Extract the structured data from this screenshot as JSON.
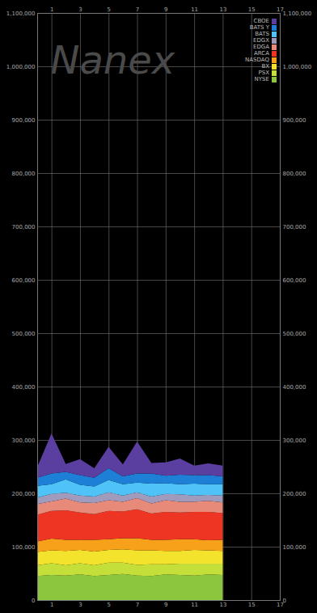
{
  "chart_data": {
    "type": "area",
    "stacked": true,
    "annotations": [
      "Nanex"
    ],
    "legend": "top-right",
    "grid": true,
    "x": [
      0,
      1,
      2,
      3,
      4,
      5,
      6,
      7,
      8,
      9,
      10,
      11,
      12,
      13
    ],
    "xlim": [
      0,
      17
    ],
    "xticks": [
      1,
      3,
      5,
      7,
      9,
      11,
      13,
      15,
      17
    ],
    "ylim": [
      0,
      1100000
    ],
    "yticks": [
      0,
      {
        "value": 100000,
        "label": "100,000"
      },
      {
        "value": 200000,
        "label": "200,000"
      },
      {
        "value": 300000,
        "label": "300,000"
      },
      {
        "value": 400000,
        "label": "400,000"
      },
      {
        "value": 500000,
        "label": "500,000"
      },
      {
        "value": 600000,
        "label": "600,000"
      },
      {
        "value": 700000,
        "label": "700,000"
      },
      {
        "value": 800000,
        "label": "800,000"
      },
      {
        "value": 900000,
        "label": "900,000"
      },
      {
        "value": 1000000,
        "label": "1,000,000"
      },
      {
        "value": 1100000,
        "label": "1,100,000"
      }
    ],
    "series": [
      {
        "name": "NYSE",
        "color": "#8cc63e",
        "values": [
          45000,
          47000,
          46000,
          48000,
          45000,
          47000,
          49000,
          46000,
          45000,
          48000,
          47000,
          46000,
          48000,
          47000
        ]
      },
      {
        "name": "PSX",
        "color": "#c5df3a",
        "values": [
          20000,
          22000,
          19000,
          21000,
          20000,
          23000,
          21000,
          20000,
          22000,
          19000,
          21000,
          22000,
          20000,
          21000
        ]
      },
      {
        "name": "BX",
        "color": "#f4e32c",
        "values": [
          25000,
          24000,
          27000,
          25000,
          26000,
          24000,
          25000,
          27000,
          26000,
          25000,
          24000,
          26000,
          25000,
          24000
        ]
      },
      {
        "name": "NASDAQ",
        "color": "#f7a11a",
        "values": [
          20000,
          22000,
          21000,
          19000,
          22000,
          20000,
          21000,
          23000,
          20000,
          21000,
          22000,
          20000,
          19000,
          21000
        ]
      },
      {
        "name": "ARCA",
        "color": "#ee3524",
        "values": [
          50000,
          52000,
          55000,
          51000,
          48000,
          53000,
          50000,
          54000,
          49000,
          52000,
          50000,
          51000,
          53000,
          50000
        ]
      },
      {
        "name": "EDGA",
        "color": "#e88a7a",
        "values": [
          20000,
          18000,
          22000,
          19000,
          21000,
          20000,
          18000,
          21000,
          19000,
          22000,
          20000,
          19000,
          21000,
          20000
        ]
      },
      {
        "name": "EDGX",
        "color": "#a09abc",
        "values": [
          12000,
          14000,
          11000,
          13000,
          12000,
          15000,
          12000,
          11000,
          13000,
          12000,
          14000,
          12000,
          11000,
          13000
        ]
      },
      {
        "name": "BATS",
        "color": "#4fc3f7",
        "values": [
          22000,
          18000,
          25000,
          20000,
          19000,
          23000,
          21000,
          18000,
          24000,
          20000,
          19000,
          22000,
          20000,
          21000
        ]
      },
      {
        "name": "BATS Y",
        "color": "#1e7fd6",
        "values": [
          15000,
          20000,
          14000,
          18000,
          16000,
          22000,
          15000,
          17000,
          19000,
          14000,
          18000,
          16000,
          17000,
          15000
        ]
      },
      {
        "name": "CBOE",
        "color": "#5b3fa0",
        "values": [
          20000,
          75000,
          15000,
          30000,
          18000,
          40000,
          22000,
          60000,
          20000,
          25000,
          30000,
          18000,
          22000,
          20000
        ]
      }
    ]
  }
}
